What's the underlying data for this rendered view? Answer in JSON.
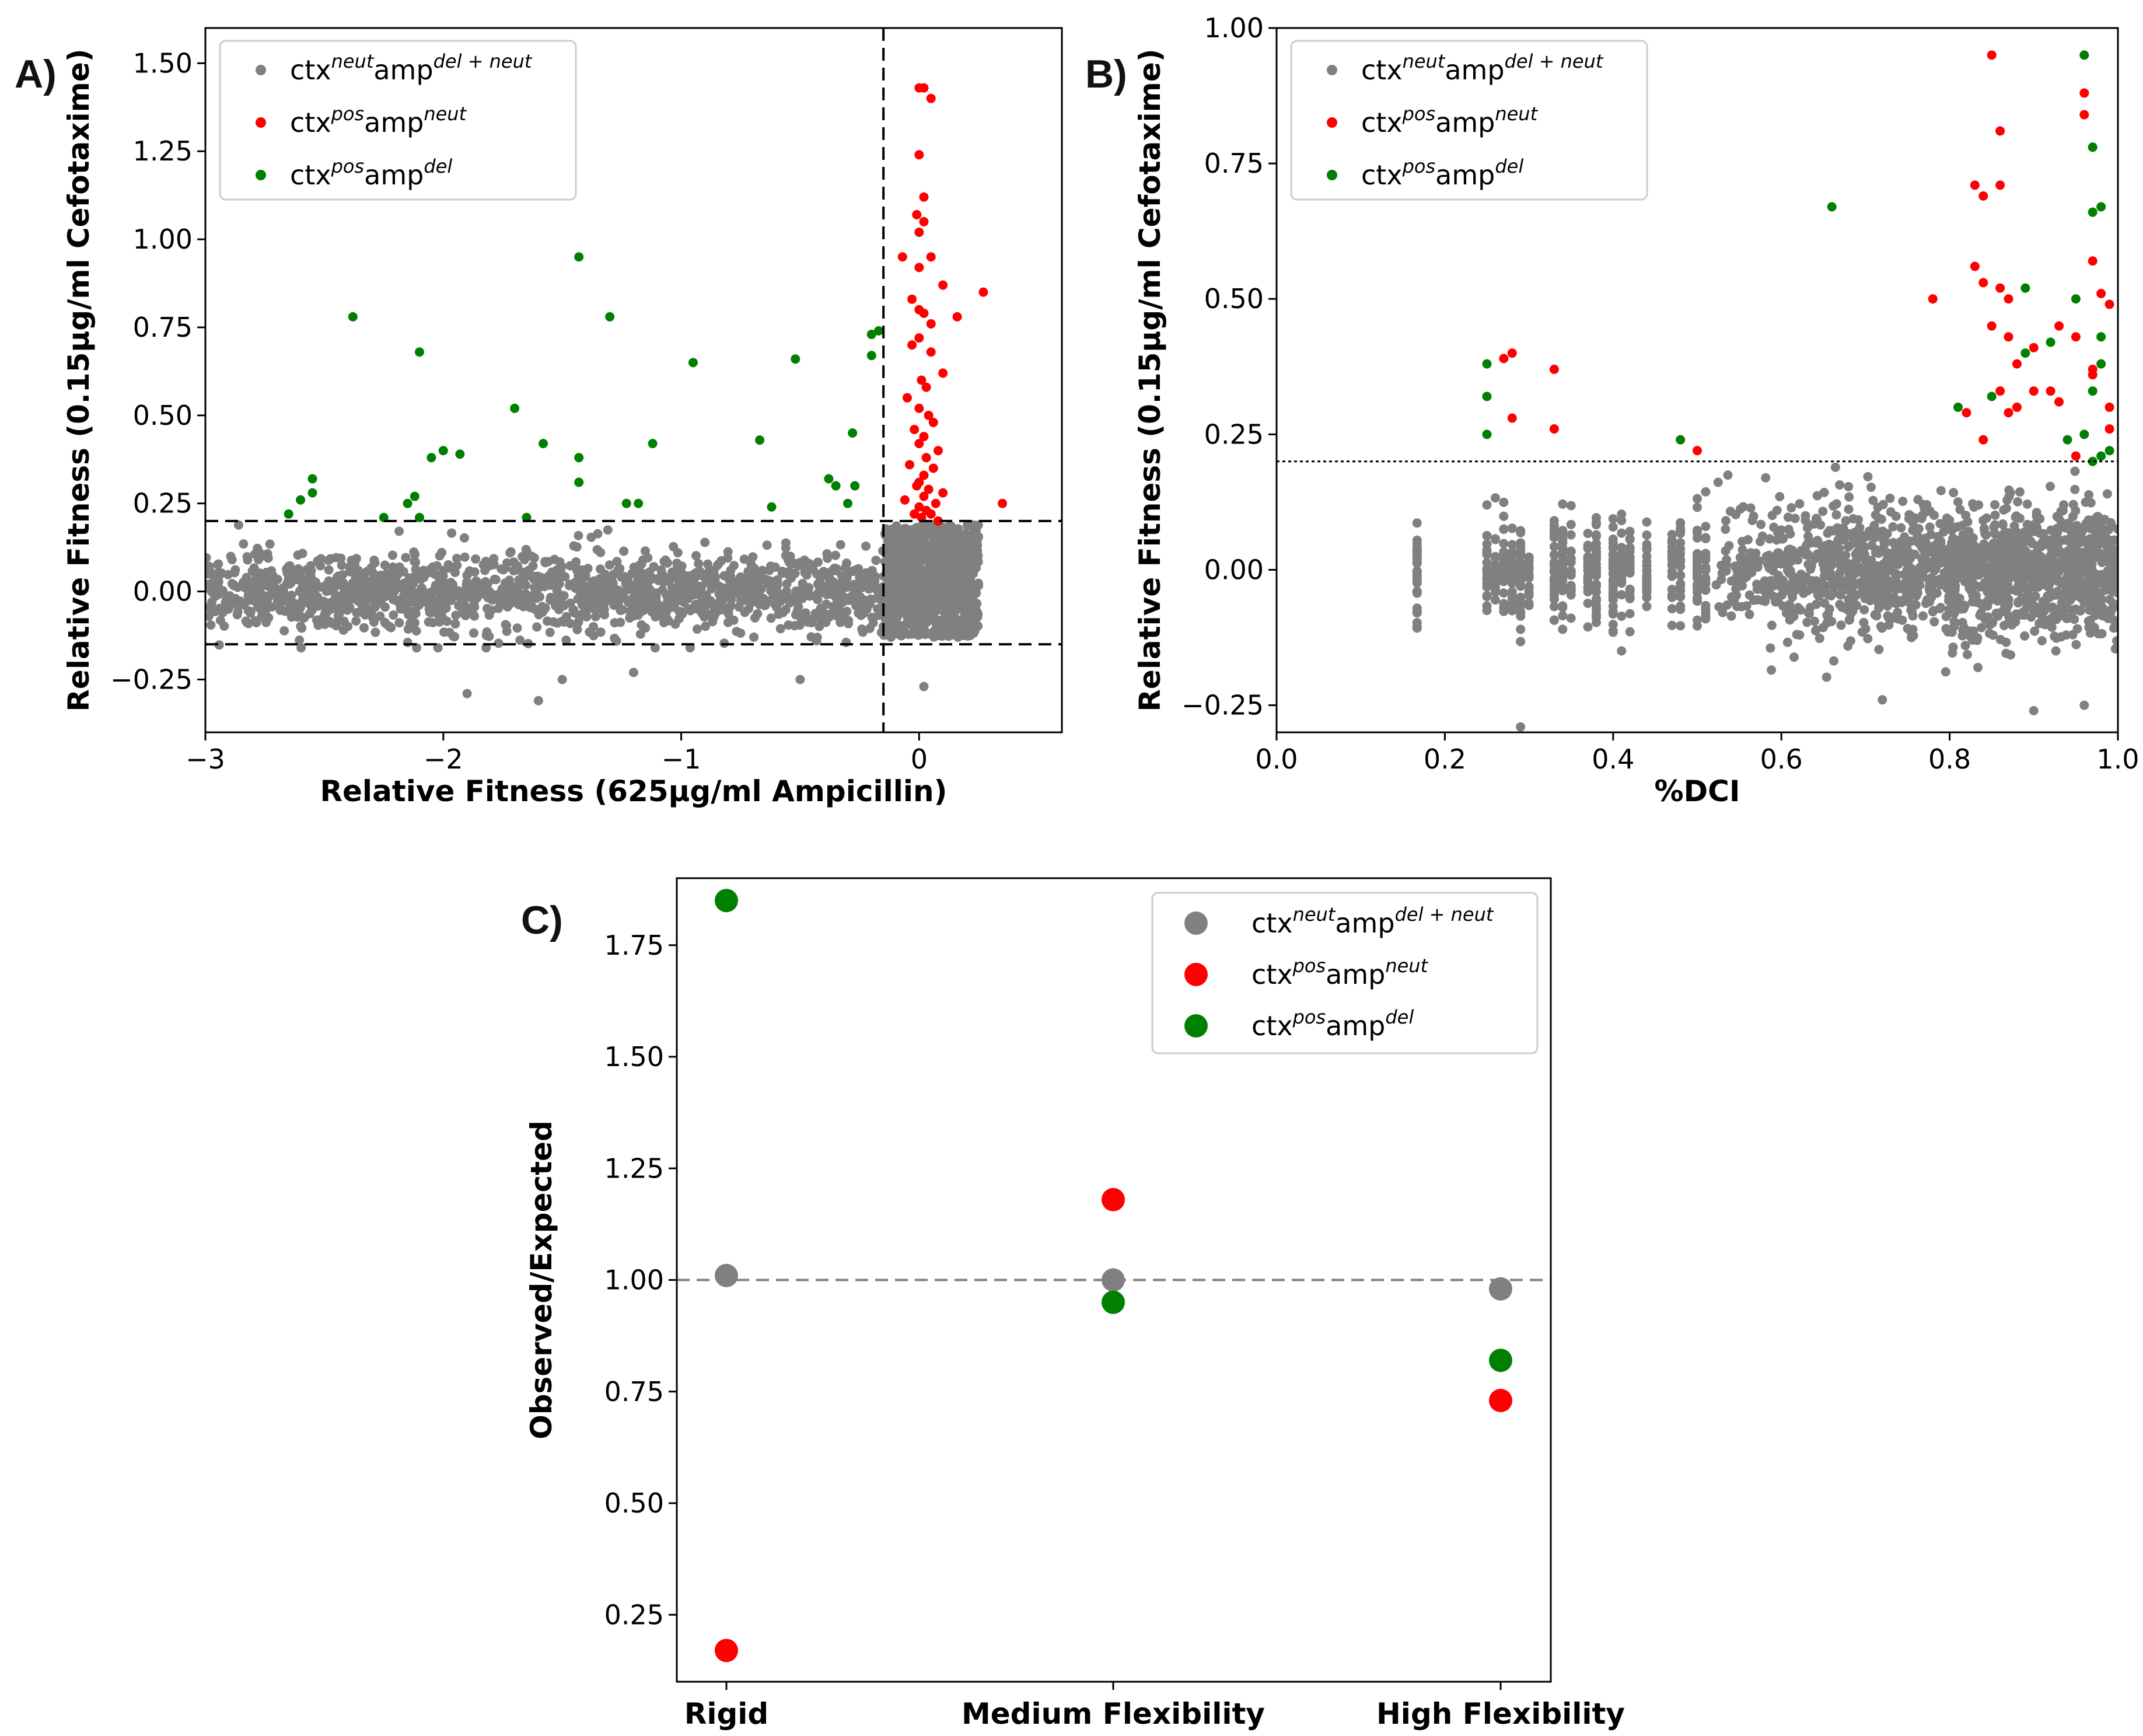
{
  "colors": {
    "neutral": "#808080",
    "pos_neut": "#ff0000",
    "pos_del": "#008000"
  },
  "legend_entries": [
    {
      "base1": "ctx",
      "sup1": "neut",
      "base2": "amp",
      "sup2": "del + neut",
      "color": "#808080"
    },
    {
      "base1": "ctx",
      "sup1": "pos",
      "base2": "amp",
      "sup2": "neut",
      "color": "#ff0000"
    },
    {
      "base1": "ctx",
      "sup1": "pos",
      "base2": "amp",
      "sup2": "del",
      "color": "#008000"
    }
  ],
  "chart_data": [
    {
      "panel": "A)",
      "type": "scatter",
      "xlabel": "Relative Fitness (625μg/ml Ampicillin)",
      "ylabel": "Relative Fitness (0.15μg/ml Cefotaxime)",
      "xlim": [
        -3.0,
        0.6
      ],
      "ylim": [
        -0.4,
        1.6
      ],
      "xticks": [
        {
          "v": -3,
          "t": "−3"
        },
        {
          "v": -2,
          "t": "−2"
        },
        {
          "v": -1,
          "t": "−1"
        },
        {
          "v": 0,
          "t": "0"
        }
      ],
      "yticks": [
        {
          "v": -0.25,
          "t": "−0.25"
        },
        {
          "v": 0,
          "t": "0.00"
        },
        {
          "v": 0.25,
          "t": "0.25"
        },
        {
          "v": 0.5,
          "t": "0.50"
        },
        {
          "v": 0.75,
          "t": "0.75"
        },
        {
          "v": 1.0,
          "t": "1.00"
        },
        {
          "v": 1.25,
          "t": "1.25"
        },
        {
          "v": 1.5,
          "t": "1.50"
        }
      ],
      "thresholds": {
        "hlines": [
          0.2,
          -0.15
        ],
        "vlines": [
          -0.15
        ]
      },
      "legend_position": "top-left",
      "series": [
        {
          "name": "ctx^neut amp^del+neut",
          "color": "#808080",
          "note": "~2500 dense points, x -3.0 to 0.25, y -0.15 to 0.2 (sparse outliers to -0.3); heavy cluster at x -0.15 to 0.2",
          "x_range": [
            -3.0,
            0.25
          ],
          "y_range": [
            -0.15,
            0.2
          ]
        },
        {
          "name": "ctx^pos amp^neut",
          "color": "#ff0000",
          "x": [
            0.0,
            0.02,
            0.05,
            0.0,
            0.02,
            -0.01,
            0.0,
            0.02,
            0.05,
            0.0,
            -0.07,
            0.1,
            0.27,
            -0.03,
            0.0,
            0.02,
            0.05,
            0.16,
            0.35,
            0.0,
            -0.03,
            0.05,
            0.1,
            0.01,
            0.03,
            -0.05,
            0.0,
            0.04,
            0.06,
            -0.02,
            0.02,
            0.0,
            0.08,
            0.03,
            -0.04,
            0.06,
            0.02,
            0.0,
            -0.01,
            0.04,
            0.1,
            0.02,
            -0.06,
            0.07,
            0.0,
            0.03,
            0.05,
            -0.02,
            0.01,
            0.08
          ],
          "y": [
            1.43,
            1.43,
            1.4,
            1.24,
            1.12,
            1.07,
            1.02,
            1.05,
            0.95,
            0.92,
            0.95,
            0.87,
            0.85,
            0.83,
            0.8,
            0.79,
            0.76,
            0.78,
            0.25,
            0.72,
            0.7,
            0.68,
            0.62,
            0.6,
            0.58,
            0.55,
            0.52,
            0.5,
            0.48,
            0.46,
            0.44,
            0.42,
            0.4,
            0.38,
            0.36,
            0.35,
            0.33,
            0.31,
            0.3,
            0.29,
            0.28,
            0.27,
            0.26,
            0.25,
            0.24,
            0.23,
            0.22,
            0.22,
            0.21,
            0.2
          ]
        },
        {
          "name": "ctx^pos amp^del",
          "color": "#008000",
          "x": [
            -2.65,
            -2.6,
            -2.55,
            -2.55,
            -2.38,
            -2.25,
            -2.15,
            -2.12,
            -2.1,
            -2.1,
            -2.05,
            -2.0,
            -1.93,
            -1.7,
            -1.65,
            -1.58,
            -1.43,
            -1.43,
            -1.43,
            -1.3,
            -1.23,
            -1.18,
            -1.12,
            -0.95,
            -0.67,
            -0.62,
            -0.52,
            -0.38,
            -0.35,
            -0.3,
            -0.28,
            -0.27,
            -0.2,
            -0.17,
            -0.2
          ],
          "y": [
            0.22,
            0.26,
            0.28,
            0.32,
            0.78,
            0.21,
            0.25,
            0.27,
            0.21,
            0.68,
            0.38,
            0.4,
            0.39,
            0.52,
            0.21,
            0.42,
            0.95,
            0.38,
            0.31,
            0.78,
            0.25,
            0.25,
            0.42,
            0.65,
            0.43,
            0.24,
            0.66,
            0.32,
            0.3,
            0.25,
            0.45,
            0.3,
            0.73,
            0.74,
            0.67
          ]
        }
      ]
    },
    {
      "panel": "B)",
      "type": "scatter",
      "xlabel": "%DCI",
      "ylabel": "Relative Fitness (0.15μg/ml Cefotaxime)",
      "xlim": [
        0.0,
        1.0
      ],
      "ylim": [
        -0.3,
        1.0
      ],
      "xticks": [
        {
          "v": 0,
          "t": "0.0"
        },
        {
          "v": 0.2,
          "t": "0.2"
        },
        {
          "v": 0.4,
          "t": "0.4"
        },
        {
          "v": 0.6,
          "t": "0.6"
        },
        {
          "v": 0.8,
          "t": "0.8"
        },
        {
          "v": 1.0,
          "t": "1.0"
        }
      ],
      "yticks": [
        {
          "v": -0.25,
          "t": "−0.25"
        },
        {
          "v": 0,
          "t": "0.00"
        },
        {
          "v": 0.25,
          "t": "0.25"
        },
        {
          "v": 0.5,
          "t": "0.50"
        },
        {
          "v": 0.75,
          "t": "0.75"
        },
        {
          "v": 1.0,
          "t": "1.00"
        }
      ],
      "thresholds": {
        "hlines_dotted": [
          0.2
        ]
      },
      "legend_position": "top-left",
      "series": [
        {
          "name": "ctx^neut amp^del+neut",
          "color": "#808080",
          "note": "vertical strips of points at discrete %DCI values from 0.17 to 1.0, y -0.27 to 0.2; densest 0.7-1.0",
          "x_range": [
            0.17,
            1.0
          ],
          "y_range": [
            -0.27,
            0.2
          ]
        },
        {
          "name": "ctx^pos amp^neut",
          "color": "#ff0000",
          "x": [
            0.27,
            0.28,
            0.28,
            0.33,
            0.33,
            0.5,
            0.78,
            0.83,
            0.84,
            0.84,
            0.85,
            0.86,
            0.86,
            0.86,
            0.87,
            0.87,
            0.88,
            0.88,
            0.83,
            0.85,
            0.86,
            0.9,
            0.92,
            0.93,
            0.95,
            0.96,
            0.96,
            0.97,
            0.97,
            0.98,
            0.99,
            0.99,
            0.9,
            0.82,
            0.84,
            0.87,
            0.93,
            0.95,
            0.97,
            0.99
          ],
          "y": [
            0.39,
            0.4,
            0.28,
            0.37,
            0.26,
            0.22,
            0.5,
            0.71,
            0.69,
            0.53,
            0.95,
            0.81,
            0.71,
            0.52,
            0.5,
            0.43,
            0.38,
            0.3,
            0.56,
            0.45,
            0.33,
            0.41,
            0.33,
            0.45,
            0.43,
            0.88,
            0.84,
            0.57,
            0.37,
            0.51,
            0.49,
            0.3,
            0.33,
            0.29,
            0.24,
            0.29,
            0.31,
            0.21,
            0.36,
            0.26
          ]
        },
        {
          "name": "ctx^pos amp^del",
          "color": "#008000",
          "x": [
            0.25,
            0.25,
            0.25,
            0.48,
            0.66,
            0.81,
            0.85,
            0.89,
            0.89,
            0.92,
            0.94,
            0.95,
            0.96,
            0.97,
            0.97,
            0.97,
            0.98,
            0.98,
            0.98,
            0.97,
            0.96,
            0.98,
            0.99,
            0.97
          ],
          "y": [
            0.38,
            0.32,
            0.25,
            0.24,
            0.67,
            0.3,
            0.32,
            0.52,
            0.4,
            0.42,
            0.24,
            0.5,
            0.95,
            0.78,
            0.78,
            0.66,
            0.67,
            0.43,
            0.38,
            0.33,
            0.25,
            0.21,
            0.22,
            0.2
          ]
        }
      ]
    },
    {
      "panel": "C)",
      "type": "scatter",
      "xlabel": "",
      "ylabel": "Observed/Expected",
      "categories": [
        "Rigid",
        "Medium Flexibility",
        "High Flexibility"
      ],
      "ylim": [
        0.1,
        1.9
      ],
      "yticks": [
        {
          "v": 0.25,
          "t": "0.25"
        },
        {
          "v": 0.5,
          "t": "0.50"
        },
        {
          "v": 0.75,
          "t": "0.75"
        },
        {
          "v": 1.0,
          "t": "1.00"
        },
        {
          "v": 1.25,
          "t": "1.25"
        },
        {
          "v": 1.5,
          "t": "1.50"
        },
        {
          "v": 1.75,
          "t": "1.75"
        }
      ],
      "reference_line": 1.0,
      "legend_position": "top-right",
      "series": [
        {
          "name": "ctx^neut amp^del+neut",
          "color": "#808080",
          "values": [
            1.01,
            1.0,
            0.98
          ]
        },
        {
          "name": "ctx^pos amp^neut",
          "color": "#ff0000",
          "values": [
            0.17,
            1.18,
            0.73
          ]
        },
        {
          "name": "ctx^pos amp^del",
          "color": "#008000",
          "values": [
            1.85,
            0.95,
            0.82
          ]
        }
      ]
    }
  ]
}
